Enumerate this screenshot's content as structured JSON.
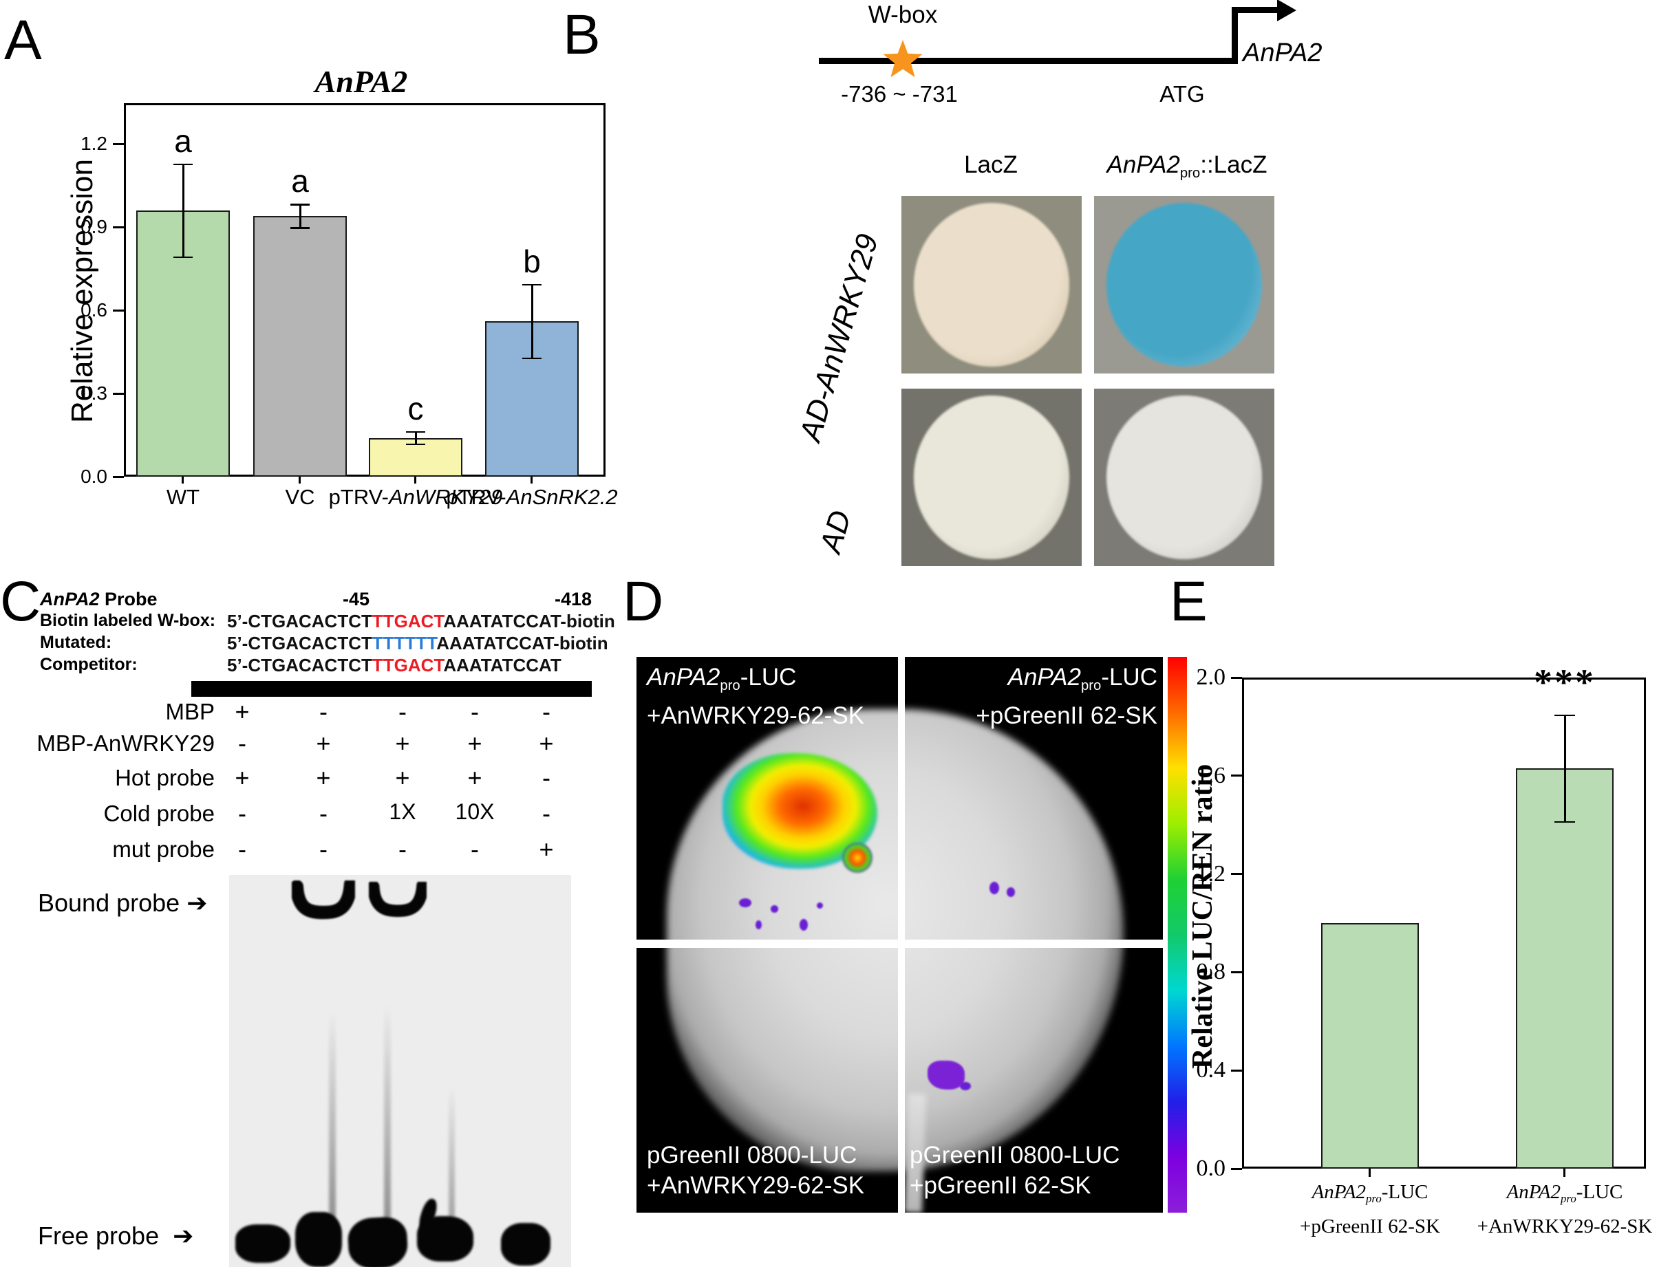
{
  "panelA": {
    "label": "A",
    "title": "AnPA2",
    "ylabel": "Relative expression",
    "bars": [
      {
        "pre": "WT",
        "it": ""
      },
      {
        "pre": "VC",
        "it": ""
      },
      {
        "pre": "pTRV-",
        "it": "AnWRKY29"
      },
      {
        "pre": "pTRV-",
        "it": "AnSnRK2.2"
      }
    ]
  },
  "panelB": {
    "label": "B",
    "wbox_label": "W-box",
    "position_label": "-736 ~ -731",
    "atg_label": "ATG",
    "gene_label": "AnPA2",
    "star_color": "#f7941d",
    "col_headers": {
      "left": "LacZ",
      "right_it": "AnPA2",
      "right_sub": "pro",
      "right_rest": "::LacZ"
    },
    "row_labels": {
      "top": "AD-AnWRKY29",
      "bottom": "AD"
    },
    "plates": [
      {
        "bg": "#8f8d7d",
        "colony": "#ebdfcc",
        "edge": "#d9cab2"
      },
      {
        "bg": "#9b9a92",
        "colony": "#46a6c6",
        "edge": "#6db9d2"
      },
      {
        "bg": "#73736b",
        "colony": "#e9e7da",
        "edge": "#cfcdc0"
      },
      {
        "bg": "#7c7b75",
        "colony": "#e5e4df",
        "edge": "#ccccc6"
      }
    ]
  },
  "panelC": {
    "label": "C",
    "probe_title_it": "AnPA2",
    "probe_title_rest": " Probe",
    "pos_left": "-45",
    "pos_right": "-418",
    "red": "#ed1c24",
    "blue": "#2b7cd6",
    "seq_rows": [
      {
        "name": "Biotin labeled W-box:",
        "parts": [
          {
            "t": "5’-CTGACACTCT",
            "c": "k"
          },
          {
            "t": "TTGACT",
            "c": "r"
          },
          {
            "t": "AAATATCCAT-biotin",
            "c": "k"
          }
        ]
      },
      {
        "name": "Mutated:",
        "parts": [
          {
            "t": "5’-CTGACACTCT",
            "c": "k"
          },
          {
            "t": "TTTTTT",
            "c": "b"
          },
          {
            "t": "AAATATCCAT-biotin",
            "c": "k"
          }
        ]
      },
      {
        "name": "Competitor:",
        "parts": [
          {
            "t": "5’-CTGACACTCT",
            "c": "k"
          },
          {
            "t": "TTGACT",
            "c": "r"
          },
          {
            "t": "AAATATCCAT",
            "c": "k"
          }
        ]
      }
    ],
    "matrix": [
      {
        "label": "MBP",
        "cells": [
          "+",
          "-",
          "-",
          "-",
          "-"
        ]
      },
      {
        "label": "MBP-AnWRKY29",
        "cells": [
          "-",
          "+",
          "+",
          "+",
          "+"
        ]
      },
      {
        "label": "Hot probe",
        "cells": [
          "+",
          "+",
          "+",
          "+",
          "-"
        ]
      },
      {
        "label": "Cold probe",
        "cells": [
          "-",
          "-",
          "1X",
          "10X",
          "-"
        ]
      },
      {
        "label": "mut probe",
        "cells": [
          "-",
          "-",
          "-",
          "-",
          "+"
        ]
      }
    ],
    "bound_label": "Bound probe",
    "free_label": "Free probe",
    "arrow": "➔"
  },
  "panelD": {
    "label": "D",
    "quadrant_labels": [
      {
        "it": "AnPA2",
        "sub": "pro",
        "rest": "-LUC",
        "line2": "+AnWRKY29-62-SK"
      },
      {
        "it": "AnPA2",
        "sub": "pro",
        "rest": "-LUC",
        "line2": "+pGreenII 62-SK"
      },
      {
        "it": "",
        "sub": "",
        "rest": "pGreenII 0800-LUC",
        "line2": "+AnWRKY29-62-SK"
      },
      {
        "it": "",
        "sub": "",
        "rest": "pGreenII 0800-LUC",
        "line2": "+pGreenII 62-SK"
      }
    ],
    "colorbar": [
      "#ff0000",
      "#ff6a00",
      "#ffe000",
      "#9dee00",
      "#1fd133",
      "#12c96a",
      "#00d8d0",
      "#0077ff",
      "#2020e8",
      "#7d00e0",
      "#8c1fd9"
    ]
  },
  "panelE": {
    "label": "E",
    "ylabel": "Relative LUC/REN ratio",
    "sig": "***",
    "bars": [
      {
        "it": "AnPA2",
        "sub": "pro",
        "rest": "-LUC",
        "line2": "+pGreenII 62-SK"
      },
      {
        "it": "AnPA2",
        "sub": "pro",
        "rest": "-LUC",
        "line2": "+AnWRKY29-62-SK"
      }
    ]
  },
  "chart_data": [
    {
      "type": "bar",
      "panel": "A",
      "title": "AnPA2",
      "xlabel": "",
      "ylabel": "Relative expression",
      "categories": [
        "WT",
        "VC",
        "pTRV-AnWRKY29",
        "pTRV-AnSnRK2.2"
      ],
      "values": [
        0.96,
        0.94,
        0.14,
        0.56
      ],
      "errors": [
        0.17,
        0.045,
        0.025,
        0.135
      ],
      "sig_letters": [
        "a",
        "a",
        "c",
        "b"
      ],
      "bar_colors": [
        "#b4d9ab",
        "#b5b5b5",
        "#f8f5ae",
        "#90b4d8"
      ],
      "ylim": [
        0,
        1.34
      ],
      "yticks": [
        0,
        0.3,
        0.6,
        0.9,
        1.2
      ],
      "grid": false,
      "legend": "none"
    },
    {
      "type": "bar",
      "panel": "E",
      "title": "",
      "xlabel": "",
      "ylabel": "Relative LUC/REN ratio",
      "categories": [
        "AnPA2pro-LUC +pGreenII 62-SK",
        "AnPA2pro-LUC +AnWRKY29-62-SK"
      ],
      "values": [
        1.0,
        1.63
      ],
      "errors": [
        0,
        0.22
      ],
      "annotations": [
        "",
        "***"
      ],
      "bar_colors": [
        "#badcb4",
        "#badcb4"
      ],
      "ylim": [
        0,
        2.0
      ],
      "yticks": [
        0,
        0.4,
        0.8,
        1.2,
        1.6,
        2.0
      ],
      "grid": false,
      "legend": "none"
    }
  ]
}
